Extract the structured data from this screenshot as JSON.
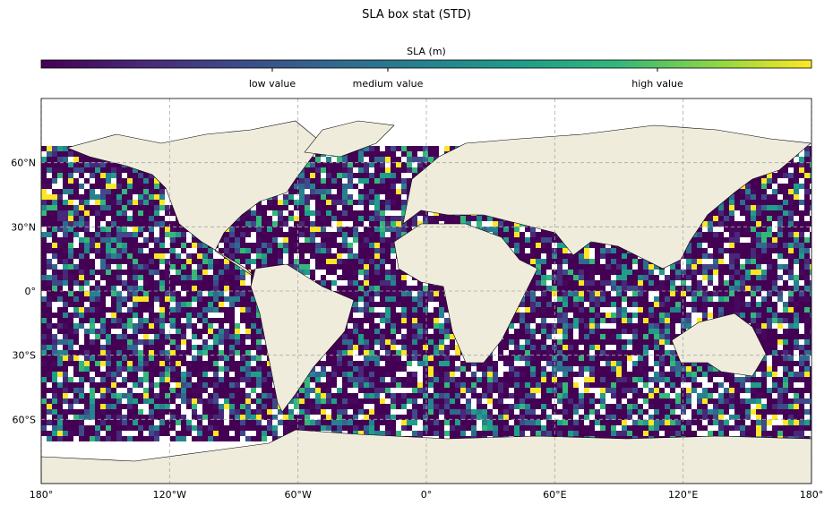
{
  "chart_data": {
    "type": "map",
    "title": "SLA box stat (STD)",
    "colorbar": {
      "label": "SLA (m)",
      "clim": [
        0,
        1
      ],
      "ticks": [
        {
          "value": 0.3,
          "label": "low value"
        },
        {
          "value": 0.45,
          "label": "medium value"
        },
        {
          "value": 0.8,
          "label": "high value"
        }
      ]
    },
    "xlim": [
      -180,
      180
    ],
    "ylim": [
      -90,
      90
    ],
    "xticks": [
      {
        "value": -180,
        "label": "180°"
      },
      {
        "value": -120,
        "label": "120°W"
      },
      {
        "value": -60,
        "label": "60°W"
      },
      {
        "value": 0,
        "label": "0°"
      },
      {
        "value": 60,
        "label": "60°E"
      },
      {
        "value": 120,
        "label": "120°E"
      },
      {
        "value": 180,
        "label": "180°"
      }
    ],
    "yticks": [
      {
        "value": 60,
        "label": "60°N"
      },
      {
        "value": 30,
        "label": "30°N"
      },
      {
        "value": 0,
        "label": "0°"
      },
      {
        "value": -30,
        "label": "30°S"
      },
      {
        "value": -60,
        "label": "60°S"
      }
    ],
    "grid": true
  }
}
